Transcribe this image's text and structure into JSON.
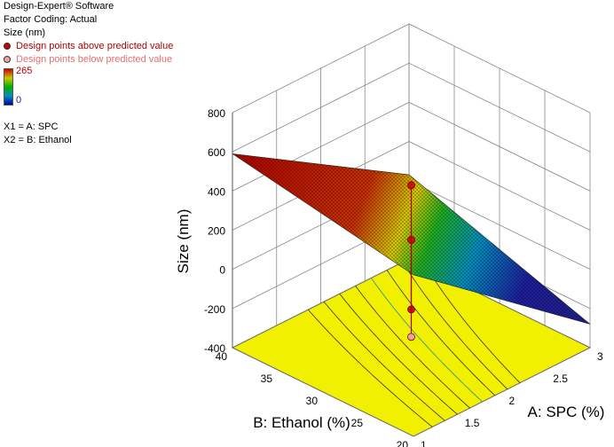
{
  "header": {
    "software": "Design-Expert® Software",
    "coding": "Factor Coding: Actual",
    "response": "Size (nm)",
    "legend_above": "Design points above predicted value",
    "legend_below": "Design points below predicted value",
    "scale_max": "265",
    "scale_min": "0",
    "x1": "X1 = A: SPC",
    "x2": "X2 = B: Ethanol"
  },
  "colors": {
    "above": "#b00000",
    "below": "#e07070",
    "floor": "#f0f000",
    "surface_high": "#b00000",
    "surface_low": "#1e1ea0"
  },
  "chart_data": {
    "type": "surface3d",
    "zlabel": "Size (nm)",
    "xlabel": "A: SPC (%)",
    "ylabel": "B: Ethanol (%)",
    "z_ticks": [
      "-400",
      "-200",
      "0",
      "200",
      "400",
      "600",
      "800"
    ],
    "x_ticks": [
      "1",
      "1.5",
      "2",
      "2.5",
      "3"
    ],
    "y_ticks": [
      "20",
      "25",
      "30",
      "35",
      "40"
    ],
    "z_range": [
      -400,
      800
    ],
    "x_range": [
      1,
      3
    ],
    "y_range": [
      20,
      40
    ],
    "surface_corners": [
      {
        "spc": 1,
        "ethanol": 40,
        "size": 590
      },
      {
        "spc": 1,
        "ethanol": 20,
        "size": 425
      },
      {
        "spc": 3,
        "ethanol": 20,
        "size": -280
      },
      {
        "spc": 3,
        "ethanol": 40,
        "size": 30
      }
    ],
    "design_points": [
      {
        "spc": 2,
        "ethanol": 30,
        "size": 430,
        "position": "above"
      },
      {
        "spc": 2,
        "ethanol": 30,
        "size": 150,
        "position": "above"
      },
      {
        "spc": 2,
        "ethanol": 30,
        "size": -205,
        "position": "above"
      },
      {
        "spc": 2,
        "ethanol": 30,
        "size": -345,
        "position": "below"
      }
    ]
  }
}
